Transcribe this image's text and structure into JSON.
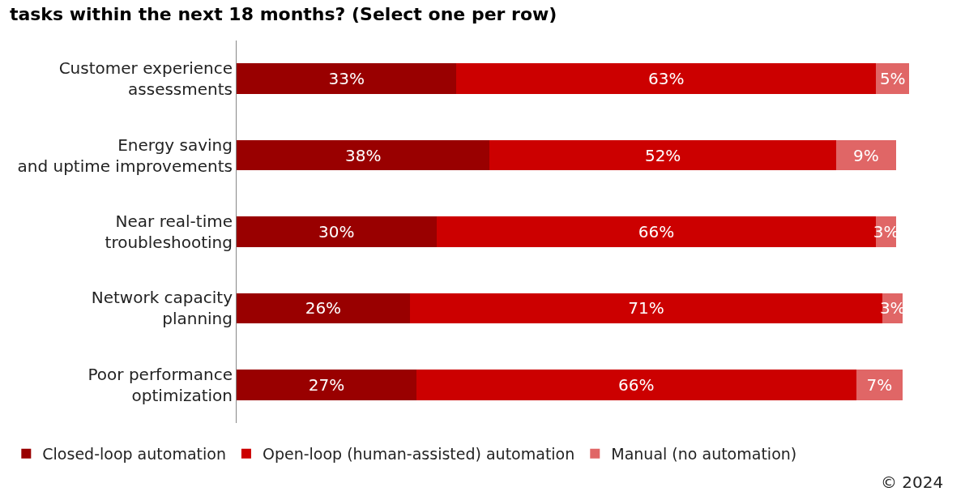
{
  "chart_data": {
    "type": "bar",
    "orientation": "horizontal",
    "stacked": true,
    "title": "tasks within the next 18 months? (Select one per row)",
    "categories": [
      "Customer experience assessments",
      "Energy saving and uptime improvements",
      "Near real-time troubleshooting",
      "Network capacity planning",
      "Poor performance optimization"
    ],
    "series": [
      {
        "name": "Closed-loop automation",
        "color": "#990000",
        "values": [
          33,
          38,
          30,
          26,
          27
        ],
        "value_labels": [
          "33%",
          "38%",
          "30%",
          "26%",
          "27%"
        ]
      },
      {
        "name": "Open-loop (human-assisted) automation",
        "color": "#cc0000",
        "values": [
          63,
          52,
          66,
          71,
          66
        ],
        "value_labels": [
          "63%",
          "52%",
          "66%",
          "71%",
          "66%"
        ]
      },
      {
        "name": "Manual (no automation)",
        "color": "#e06666",
        "values": [
          5,
          9,
          3,
          3,
          7
        ],
        "value_labels": [
          "5%",
          "9%",
          "3%",
          "3%",
          "7%"
        ]
      }
    ],
    "tick_labels": "y",
    "legend": "bottom",
    "annotations": [
      "© 2024"
    ]
  }
}
